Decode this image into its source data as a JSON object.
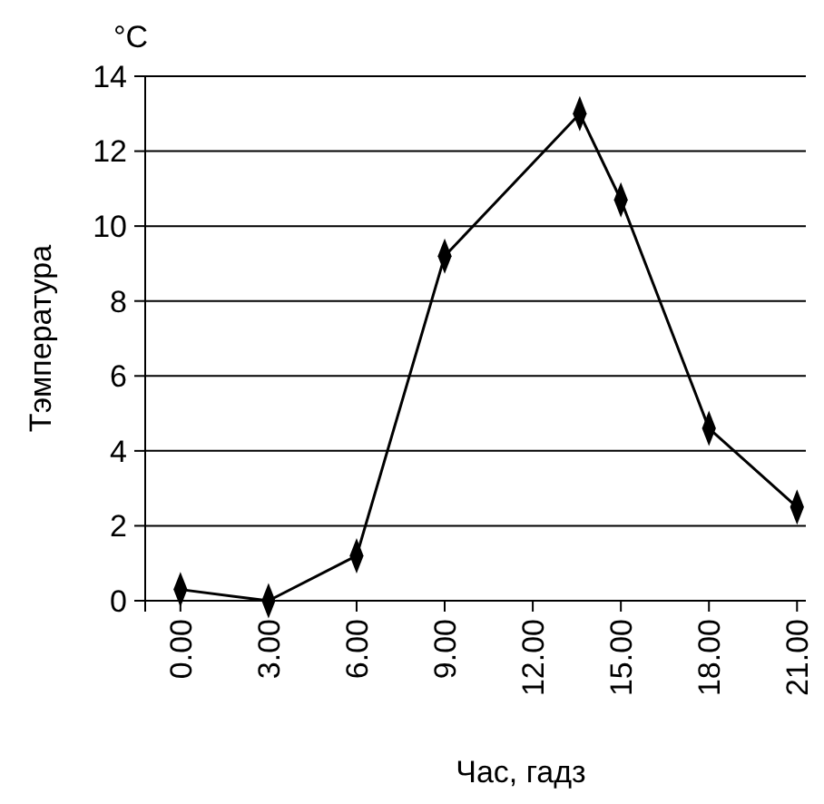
{
  "chart_data": {
    "type": "line",
    "xlabel": "Час, гадз",
    "ylabel": "Тэмпература",
    "annotations": [
      "°C"
    ],
    "x": [
      0,
      3,
      6,
      9,
      13.6,
      15,
      18,
      21
    ],
    "series": [
      {
        "color": "#000000",
        "values": [
          0.3,
          0,
          1.2,
          9.2,
          13,
          10.7,
          4.6,
          2.5
        ]
      }
    ],
    "xlim": [
      -1.2,
      21.3
    ],
    "ylim": [
      0,
      14
    ],
    "xticks": [
      {
        "value": 0,
        "label": "0.00"
      },
      {
        "value": 3,
        "label": "3.00"
      },
      {
        "value": 6,
        "label": "6.00"
      },
      {
        "value": 9,
        "label": "9.00"
      },
      {
        "value": 12,
        "label": "12.00"
      },
      {
        "value": 15,
        "label": "15.00"
      },
      {
        "value": 18,
        "label": "18.00"
      },
      {
        "value": 21,
        "label": "21.00"
      }
    ],
    "yticks": [
      0,
      2,
      4,
      6,
      8,
      10,
      12,
      14
    ],
    "grid": "y",
    "marker": "diamond",
    "line_style": "solid"
  }
}
